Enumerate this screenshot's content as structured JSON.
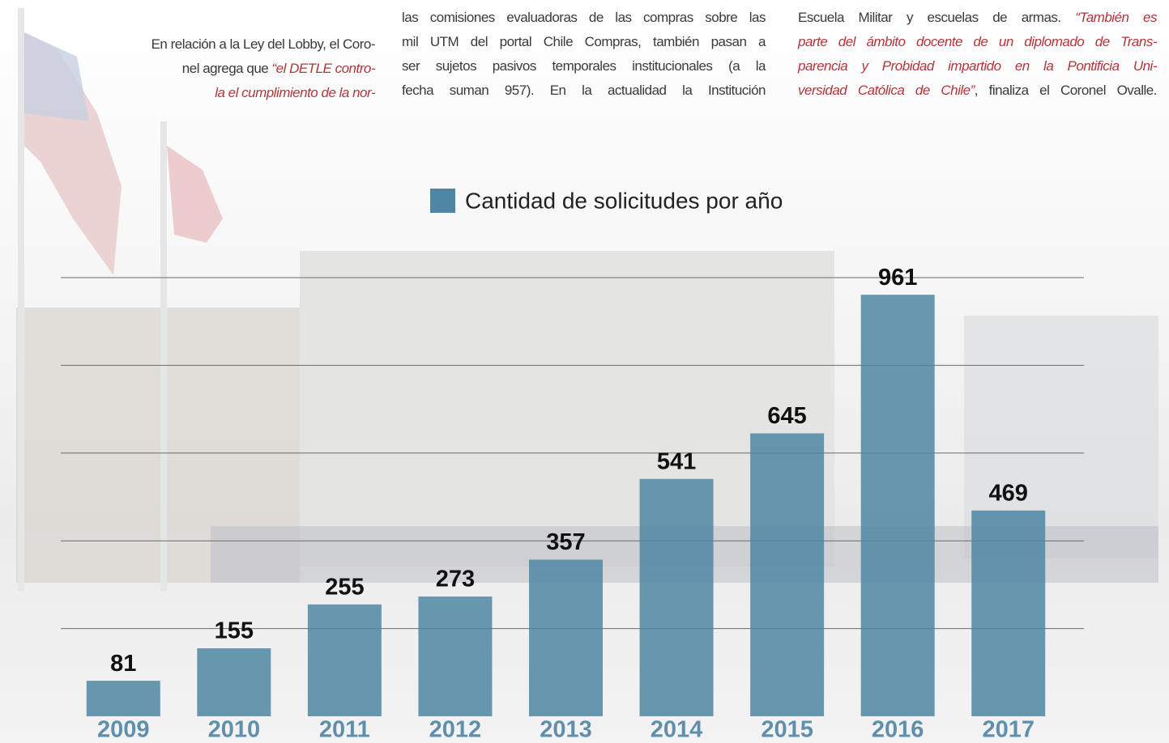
{
  "columns": [
    {
      "lines": [
        [
          {
            "text": "En relación a la Ley del Lobby, el Coro-"
          }
        ],
        [
          {
            "text": "nel agrega que "
          },
          {
            "text": "“el DETLE contro-",
            "italic": true
          }
        ],
        [
          {
            "text": "la el cumplimiento de la nor-",
            "italic": true
          }
        ]
      ]
    },
    {
      "lines": [
        [
          {
            "text": "las comisiones evaluadoras de las compras sobre las"
          }
        ],
        [
          {
            "text": "mil UTM del portal Chile Compras, también pasan a"
          }
        ],
        [
          {
            "text": "ser sujetos pasivos temporales institucionales (a la"
          }
        ],
        [
          {
            "text": "fecha suman 957). En la actualidad la Institución"
          }
        ]
      ]
    },
    {
      "lines": [
        [
          {
            "text": "Escuela Militar y escuelas de armas. "
          },
          {
            "text": "“También es",
            "italic": true
          }
        ],
        [
          {
            "text": "parte del ámbito docente de un diplomado de Trans-",
            "italic": true
          }
        ],
        [
          {
            "text": "parencia y Probidad impartido en la Pontificia Uni-",
            "italic": true
          }
        ],
        [
          {
            "text": "versidad Católica de Chile”",
            "italic": true
          },
          {
            "text": ", finaliza el Coronel Ovalle."
          }
        ]
      ]
    }
  ],
  "chart_data": {
    "type": "bar",
    "categories": [
      "2009",
      "2010",
      "2011",
      "2012",
      "2013",
      "2014",
      "2015",
      "2016",
      "2017"
    ],
    "series": [
      {
        "name": "Cantidad de solicitudes por año",
        "color": "#4f86a3",
        "values": [
          81,
          155,
          255,
          273,
          357,
          541,
          645,
          961,
          469
        ]
      }
    ],
    "ylim": [
      0,
      1000
    ],
    "yticks": [
      200,
      400,
      600,
      800,
      1000
    ],
    "grid": true
  }
}
